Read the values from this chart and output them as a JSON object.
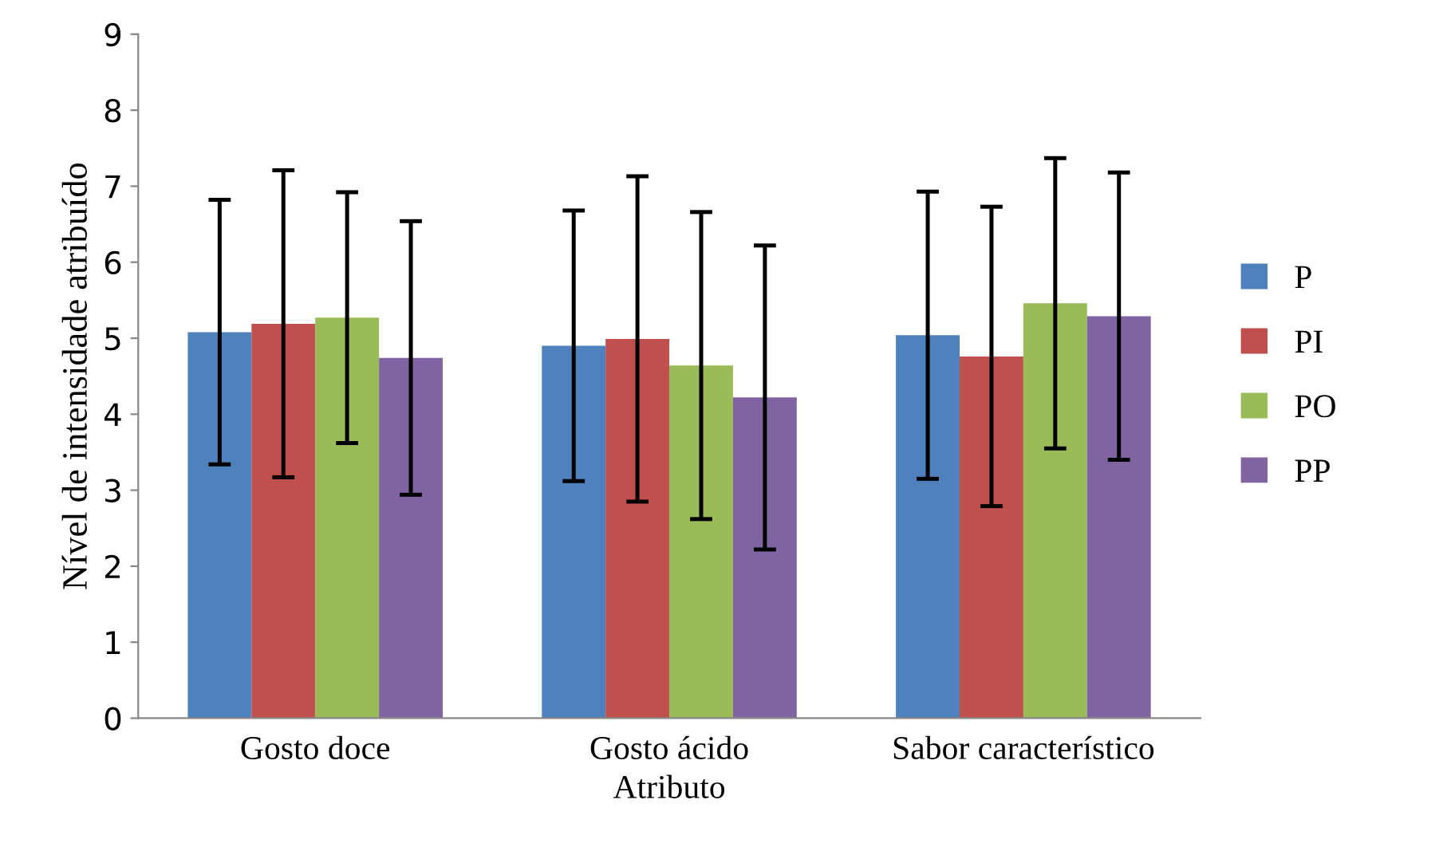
{
  "chart_data": {
    "type": "bar",
    "xlabel": "Atributo",
    "ylabel": "Nível de intensidade atribuído",
    "categories": [
      "Gosto doce",
      "Gosto ácido",
      "Sabor característico"
    ],
    "series": [
      {
        "name": "P",
        "color": "#4f81bd",
        "values": [
          5.08,
          4.9,
          5.04
        ],
        "errors": [
          1.74,
          1.78,
          1.89
        ]
      },
      {
        "name": "PI",
        "color": "#c0504d",
        "values": [
          5.19,
          4.99,
          4.76
        ],
        "errors": [
          2.02,
          2.14,
          1.97
        ]
      },
      {
        "name": "PO",
        "color": "#9bbb59",
        "values": [
          5.27,
          4.64,
          5.46
        ],
        "errors": [
          1.65,
          2.02,
          1.91
        ]
      },
      {
        "name": "PP",
        "color": "#8064a2",
        "values": [
          4.74,
          4.22,
          5.29
        ],
        "errors": [
          1.8,
          2.0,
          1.89
        ]
      }
    ],
    "ylim": [
      0,
      9
    ],
    "yticks": [
      0,
      1,
      2,
      3,
      4,
      5,
      6,
      7,
      8,
      9
    ],
    "grid": false,
    "legend": "right"
  }
}
